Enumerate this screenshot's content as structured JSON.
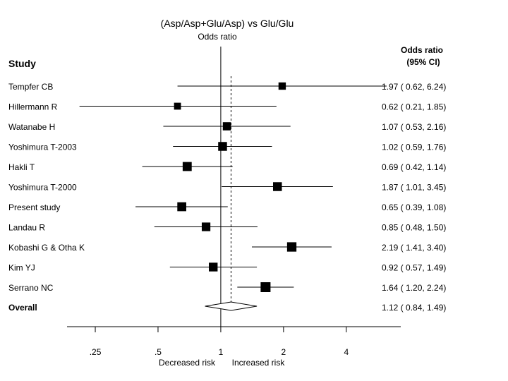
{
  "chart_data": {
    "type": "forest",
    "title": "(Asp/Asp+Glu/Asp) vs Glu/Glu",
    "subtitle": "Odds ratio",
    "study_header": "Study",
    "ci_header_line1": "Odds ratio",
    "ci_header_line2": "(95% CI)",
    "x_scale": "log",
    "xlim": [
      0.183,
      7.3
    ],
    "reference_line": 1,
    "pooled_line": 1.12,
    "x_ticks": [
      {
        "value": 0.25,
        "label": ".25"
      },
      {
        "value": 0.5,
        "label": ".5"
      },
      {
        "value": 1,
        "label": "1"
      },
      {
        "value": 2,
        "label": "2"
      },
      {
        "value": 4,
        "label": "4"
      }
    ],
    "xlabel_left": "Decreased risk",
    "xlabel_right": "Increased risk",
    "studies": [
      {
        "name": "Tempfer CB",
        "or": 1.97,
        "lower": 0.62,
        "upper": 6.24,
        "ci_text": "1.97 ( 0.62, 6.24)",
        "weight": 0.4
      },
      {
        "name": "Hillermann R",
        "or": 0.62,
        "lower": 0.21,
        "upper": 1.85,
        "ci_text": "0.62 ( 0.21, 1.85)",
        "weight": 0.3
      },
      {
        "name": "Watanabe H",
        "or": 1.07,
        "lower": 0.53,
        "upper": 2.16,
        "ci_text": "1.07 ( 0.53, 2.16)",
        "weight": 0.6
      },
      {
        "name": "Yoshimura T-2003",
        "or": 1.02,
        "lower": 0.59,
        "upper": 1.76,
        "ci_text": "1.02 ( 0.59, 1.76)",
        "weight": 0.75
      },
      {
        "name": "Hakli T",
        "or": 0.69,
        "lower": 0.42,
        "upper": 1.14,
        "ci_text": "0.69 ( 0.42, 1.14)",
        "weight": 0.8
      },
      {
        "name": "Yoshimura T-2000",
        "or": 1.87,
        "lower": 1.01,
        "upper": 3.45,
        "ci_text": "1.87 ( 1.01, 3.45)",
        "weight": 0.75
      },
      {
        "name": "Present study",
        "or": 0.65,
        "lower": 0.39,
        "upper": 1.08,
        "ci_text": "0.65 ( 0.39, 1.08)",
        "weight": 0.78
      },
      {
        "name": "Landau R",
        "or": 0.85,
        "lower": 0.48,
        "upper": 1.5,
        "ci_text": "0.85 ( 0.48, 1.50)",
        "weight": 0.7
      },
      {
        "name": "Kobashi G & Otha K",
        "or": 2.19,
        "lower": 1.41,
        "upper": 3.4,
        "ci_text": "2.19 ( 1.41, 3.40)",
        "weight": 0.88
      },
      {
        "name": "Kim YJ",
        "or": 0.92,
        "lower": 0.57,
        "upper": 1.49,
        "ci_text": "0.92 ( 0.57, 1.49)",
        "weight": 0.73
      },
      {
        "name": "Serrano NC",
        "or": 1.64,
        "lower": 1.2,
        "upper": 2.24,
        "ci_text": "1.64 ( 1.20, 2.24)",
        "weight": 1.0
      }
    ],
    "overall": {
      "name": "Overall",
      "or": 1.12,
      "lower": 0.84,
      "upper": 1.49,
      "ci_text": "1.12 ( 0.84, 1.49)"
    }
  }
}
